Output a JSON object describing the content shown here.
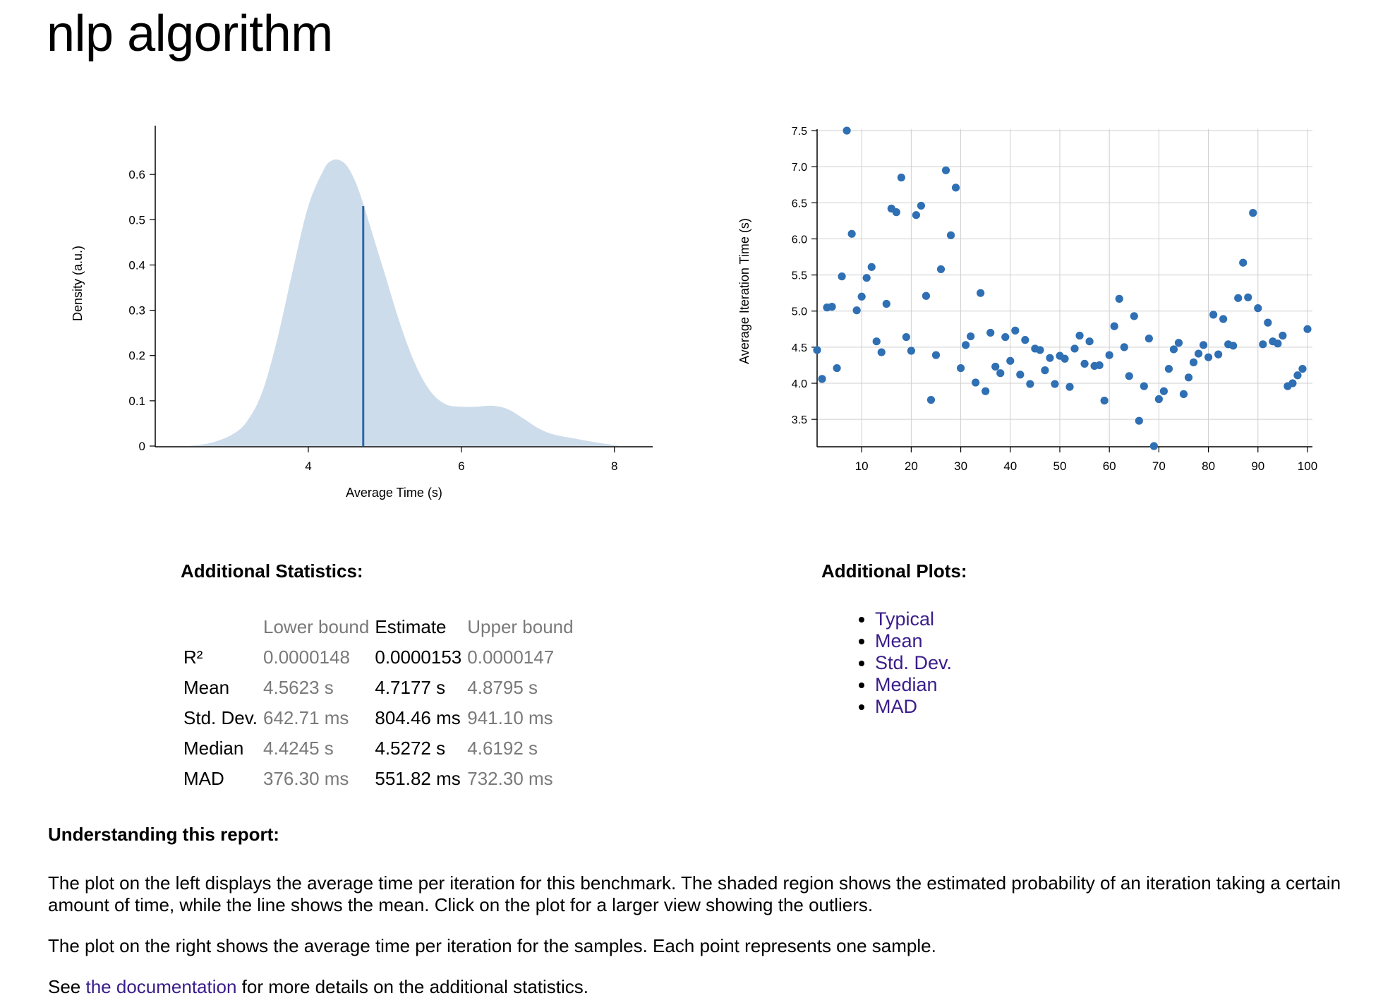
{
  "title": "nlp algorithm",
  "colors": {
    "density_fill": "#cddcea",
    "mean_line": "#2e67a8",
    "point": "#2f6fb3",
    "grid": "#cfcfcf",
    "link": "#3a1d8a",
    "muted": "#7a7a7a"
  },
  "chart_data": [
    {
      "type": "area",
      "xlabel": "Average Time (s)",
      "ylabel": "Density (a.u.)",
      "xlim": [
        2.0,
        8.5
      ],
      "ylim": [
        0,
        0.7
      ],
      "xticks": [
        4,
        6,
        8
      ],
      "yticks": [
        0,
        0.1,
        0.2,
        0.3,
        0.4,
        0.5,
        0.6
      ],
      "ytick_labels": [
        "0",
        "0.1",
        "0.2",
        "0.3",
        "0.4",
        "0.5",
        "0.6"
      ],
      "mean": 4.7177,
      "mean_density": 0.53,
      "x": [
        2.4,
        2.7,
        3.0,
        3.2,
        3.4,
        3.6,
        3.8,
        4.0,
        4.2,
        4.3,
        4.4,
        4.5,
        4.6,
        4.7,
        4.8,
        5.0,
        5.2,
        5.4,
        5.6,
        5.8,
        6.0,
        6.2,
        6.4,
        6.6,
        6.8,
        7.0,
        7.2,
        7.5,
        7.8,
        8.1
      ],
      "y": [
        0.0,
        0.006,
        0.025,
        0.055,
        0.12,
        0.24,
        0.39,
        0.53,
        0.61,
        0.63,
        0.632,
        0.62,
        0.59,
        0.545,
        0.49,
        0.38,
        0.27,
        0.18,
        0.12,
        0.092,
        0.087,
        0.087,
        0.089,
        0.082,
        0.062,
        0.04,
        0.026,
        0.016,
        0.007,
        0.0
      ]
    },
    {
      "type": "scatter",
      "xlabel": "",
      "ylabel": "Average Iteration Time (s)",
      "xlim": [
        1,
        101
      ],
      "ylim": [
        3.13,
        7.52
      ],
      "xticks": [
        10,
        20,
        30,
        40,
        50,
        60,
        70,
        80,
        90,
        100
      ],
      "yticks": [
        3.5,
        4.0,
        4.5,
        5.0,
        5.5,
        6.0,
        6.5,
        7.0,
        7.5
      ],
      "ytick_labels": [
        "3.5",
        "4.0",
        "4.5",
        "5.0",
        "5.5",
        "6.0",
        "6.5",
        "7.0",
        "7.5"
      ],
      "x": [
        1,
        2,
        3,
        4,
        5,
        6,
        7,
        8,
        9,
        10,
        11,
        12,
        13,
        14,
        15,
        16,
        17,
        18,
        19,
        20,
        21,
        22,
        23,
        24,
        25,
        26,
        27,
        28,
        29,
        30,
        31,
        32,
        33,
        34,
        35,
        36,
        37,
        38,
        39,
        40,
        41,
        42,
        43,
        44,
        45,
        46,
        47,
        48,
        49,
        50,
        51,
        52,
        53,
        54,
        55,
        56,
        57,
        58,
        59,
        60,
        61,
        62,
        63,
        64,
        65,
        66,
        67,
        68,
        69,
        70,
        71,
        72,
        73,
        74,
        75,
        76,
        77,
        78,
        79,
        80,
        81,
        82,
        83,
        84,
        85,
        86,
        87,
        88,
        89,
        90,
        91,
        92,
        93,
        94,
        95,
        96,
        97,
        98,
        99,
        100
      ],
      "y": [
        4.46,
        4.06,
        5.05,
        5.06,
        4.21,
        5.48,
        7.5,
        6.07,
        5.01,
        5.2,
        5.46,
        5.61,
        4.58,
        4.43,
        5.1,
        6.42,
        6.37,
        6.85,
        4.64,
        4.45,
        6.33,
        6.46,
        5.21,
        3.77,
        4.39,
        5.58,
        6.95,
        6.05,
        6.71,
        4.21,
        4.53,
        4.65,
        4.01,
        5.25,
        3.89,
        4.7,
        4.23,
        4.14,
        4.64,
        4.31,
        4.73,
        4.12,
        4.6,
        3.99,
        4.48,
        4.46,
        4.18,
        4.35,
        3.99,
        4.38,
        4.34,
        3.95,
        4.48,
        4.66,
        4.27,
        4.58,
        4.24,
        4.25,
        3.76,
        4.39,
        4.79,
        5.17,
        4.5,
        4.1,
        4.93,
        3.48,
        3.96,
        4.62,
        3.13,
        3.78,
        3.89,
        4.2,
        4.47,
        4.56,
        3.85,
        4.08,
        4.29,
        4.41,
        4.53,
        4.36,
        4.95,
        4.4,
        4.89,
        4.54,
        4.52,
        5.18,
        5.67,
        5.19,
        6.36,
        5.04,
        4.54,
        4.84,
        4.58,
        4.55,
        4.66,
        3.96,
        4.0,
        4.11,
        4.2,
        4.75
      ]
    }
  ],
  "stats": {
    "heading": "Additional Statistics:",
    "headers": [
      "Lower bound",
      "Estimate",
      "Upper bound"
    ],
    "rows": [
      {
        "label": "R²",
        "lower": "0.0000148",
        "estimate": "0.0000153",
        "upper": "0.0000147"
      },
      {
        "label": "Mean",
        "lower": "4.5623 s",
        "estimate": "4.7177 s",
        "upper": "4.8795 s"
      },
      {
        "label": "Std. Dev.",
        "lower": "642.71 ms",
        "estimate": "804.46 ms",
        "upper": "941.10 ms"
      },
      {
        "label": "Median",
        "lower": "4.4245 s",
        "estimate": "4.5272 s",
        "upper": "4.6192 s"
      },
      {
        "label": "MAD",
        "lower": "376.30 ms",
        "estimate": "551.82 ms",
        "upper": "732.30 ms"
      }
    ]
  },
  "plots": {
    "heading": "Additional Plots:",
    "links": [
      "Typical",
      "Mean",
      "Std. Dev.",
      "Median",
      "MAD"
    ]
  },
  "understanding": {
    "heading": "Understanding this report:",
    "para1": "The plot on the left displays the average time per iteration for this benchmark. The shaded region shows the estimated probability of an iteration taking a certain amount of time, while the line shows the mean. Click on the plot for a larger view showing the outliers.",
    "para2": "The plot on the right shows the average time per iteration for the samples. Each point represents one sample.",
    "para3_before": "See ",
    "para3_link": "the documentation",
    "para3_after": " for more details on the additional statistics."
  }
}
